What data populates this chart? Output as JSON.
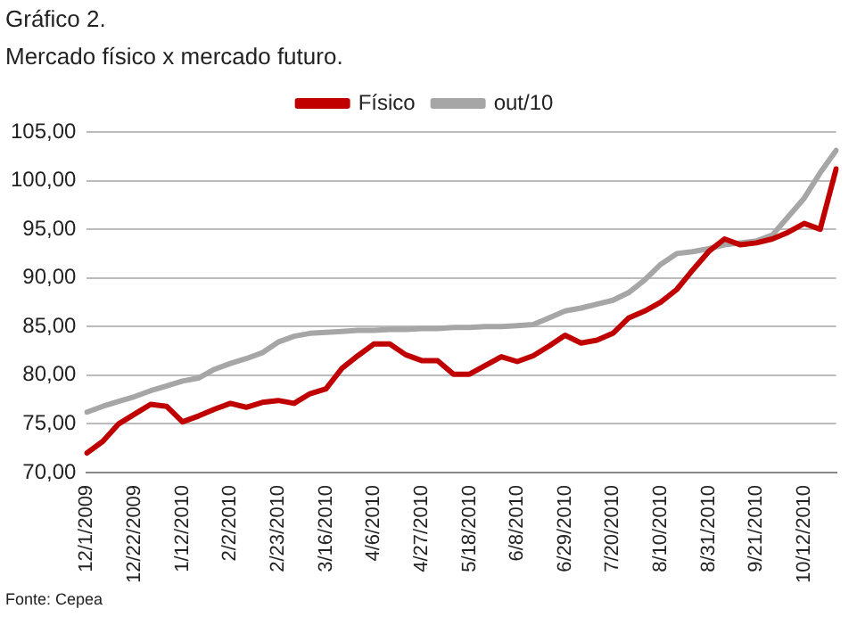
{
  "chart_data": {
    "type": "line",
    "title": "Gráfico 2.",
    "subtitle": "Mercado físico x mercado futuro.",
    "categories": [
      "12/1/2009",
      null,
      null,
      "12/22/2009",
      null,
      null,
      "1/12/2010",
      null,
      null,
      "2/2/2010",
      null,
      null,
      "2/23/2010",
      null,
      null,
      "3/16/2010",
      null,
      null,
      "4/6/2010",
      null,
      null,
      "4/27/2010",
      null,
      null,
      "5/18/2010",
      null,
      null,
      "6/8/2010",
      null,
      null,
      "6/29/2010",
      null,
      null,
      "7/20/2010",
      null,
      null,
      "8/10/2010",
      null,
      null,
      "8/31/2010",
      null,
      null,
      "9/21/2010",
      null,
      null,
      "10/12/2010",
      null,
      null
    ],
    "series": [
      {
        "name": "Físico",
        "color": "#c00000",
        "values": [
          72.0,
          73.2,
          75.0,
          76.0,
          77.0,
          76.8,
          75.2,
          75.8,
          76.5,
          77.1,
          76.7,
          77.2,
          77.4,
          77.1,
          78.1,
          78.6,
          80.7,
          82.0,
          83.2,
          83.2,
          82.1,
          81.5,
          81.5,
          80.1,
          80.1,
          81.0,
          81.9,
          81.4,
          82.0,
          83.0,
          84.1,
          83.3,
          83.6,
          84.3,
          85.9,
          86.6,
          87.5,
          88.8,
          90.8,
          92.7,
          94.0,
          93.4,
          93.6,
          94.0,
          94.7,
          95.6,
          95.0,
          101.2
        ]
      },
      {
        "name": "out/10",
        "color": "#a6a6a6",
        "values": [
          76.2,
          76.8,
          77.3,
          77.8,
          78.4,
          78.9,
          79.4,
          79.7,
          80.6,
          81.2,
          81.7,
          82.3,
          83.4,
          84.0,
          84.3,
          84.4,
          84.5,
          84.6,
          84.6,
          84.7,
          84.7,
          84.8,
          84.8,
          84.9,
          84.9,
          85.0,
          85.0,
          85.1,
          85.2,
          85.9,
          86.6,
          86.9,
          87.3,
          87.7,
          88.5,
          89.8,
          91.4,
          92.5,
          92.7,
          93.0,
          93.4,
          93.6,
          93.8,
          94.4,
          96.3,
          98.2,
          100.8,
          103.1
        ]
      }
    ],
    "ylim": [
      70,
      105
    ],
    "yticks": [
      {
        "value": 70,
        "label": "70,00"
      },
      {
        "value": 75,
        "label": "75,00"
      },
      {
        "value": 80,
        "label": "80,00"
      },
      {
        "value": 85,
        "label": "85,00"
      },
      {
        "value": 90,
        "label": "90,00"
      },
      {
        "value": 95,
        "label": "95,00"
      },
      {
        "value": 100,
        "label": "100,00"
      },
      {
        "value": 105,
        "label": "105,00"
      }
    ],
    "grid": "y",
    "legend": "top",
    "marker": "none",
    "line_style": "solid",
    "annotations": [
      "Fonte: Cepea"
    ]
  }
}
